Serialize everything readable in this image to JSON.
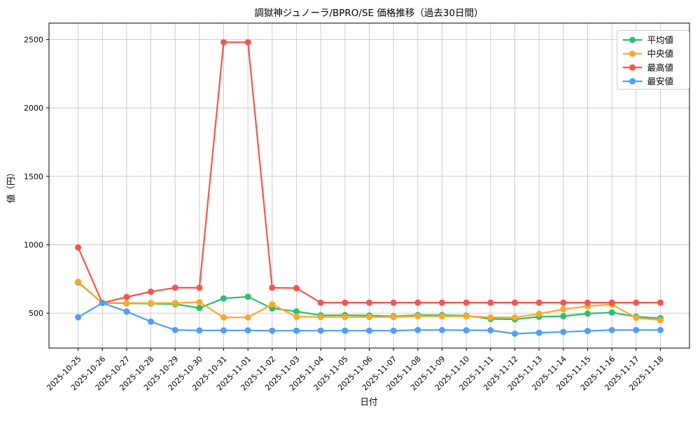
{
  "chart_data": {
    "type": "line",
    "title": "調獄神ジュノーラ/BPRO/SE 価格推移（過去30日間）",
    "xlabel": "日付",
    "ylabel": "値（円）",
    "ylim": [
      245,
      2620
    ],
    "yticks": [
      500,
      1000,
      1500,
      2000,
      2500
    ],
    "grid": true,
    "legend_position": "upper-right",
    "categories": [
      "2025-10-25",
      "2025-10-26",
      "2025-10-27",
      "2025-10-28",
      "2025-10-29",
      "2025-10-30",
      "2025-10-31",
      "2025-11-01",
      "2025-11-02",
      "2025-11-03",
      "2025-11-04",
      "2025-11-05",
      "2025-11-06",
      "2025-11-07",
      "2025-11-08",
      "2025-11-09",
      "2025-11-10",
      "2025-11-11",
      "2025-11-12",
      "2025-11-13",
      "2025-11-14",
      "2025-11-15",
      "2025-11-16",
      "2025-11-17",
      "2025-11-18"
    ],
    "series": [
      {
        "name": "平均値",
        "color": "#2ebe6c",
        "values": [
          725,
          575,
          572,
          570,
          566,
          538,
          608,
          620,
          535,
          513,
          484,
          486,
          483,
          477,
          486,
          486,
          482,
          458,
          455,
          474,
          478,
          497,
          505,
          474,
          463
        ]
      },
      {
        "name": "中央値",
        "color": "#ffa726",
        "values": [
          730,
          575,
          574,
          574,
          574,
          581,
          469,
          469,
          564,
          474,
          472,
          472,
          472,
          472,
          478,
          478,
          478,
          469,
          469,
          495,
          529,
          551,
          564,
          466,
          449
        ]
      },
      {
        "name": "最高値",
        "color": "#f6554f",
        "values": [
          980,
          575,
          618,
          657,
          686,
          686,
          2480,
          2480,
          686,
          683,
          577,
          577,
          577,
          577,
          577,
          577,
          577,
          577,
          577,
          577,
          577,
          577,
          577,
          577,
          577
        ]
      },
      {
        "name": "最安値",
        "color": "#4d9ff8",
        "values": [
          470,
          575,
          512,
          438,
          377,
          374,
          374,
          374,
          372,
          372,
          372,
          372,
          372,
          372,
          377,
          377,
          375,
          375,
          350,
          357,
          363,
          370,
          377,
          377,
          377
        ]
      }
    ]
  },
  "figure": {
    "background": "#ffffff",
    "grid_color": "#c8c8c8",
    "spine_color": "#000000",
    "legend_border": "#cccccc",
    "legend_background": "#ffffff"
  }
}
